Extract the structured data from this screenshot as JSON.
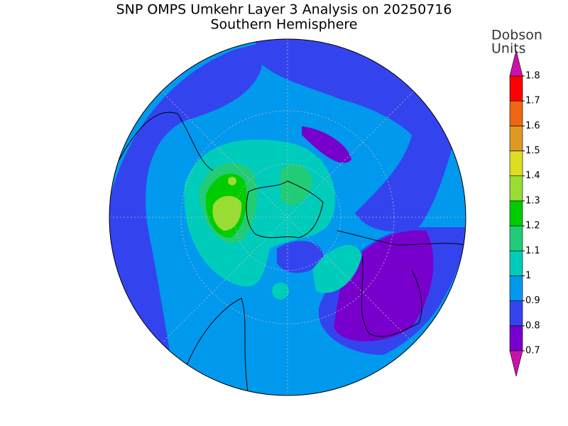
{
  "header": {
    "title": "SNP OMPS Umkehr Layer 3 Analysis on 20250716",
    "subtitle": "Southern Hemisphere"
  },
  "colorbar": {
    "label_lines": [
      "Dobson",
      "Units"
    ],
    "ticks": [
      0.7,
      0.8,
      0.9,
      1,
      1.1,
      1.2,
      1.3,
      1.4,
      1.5,
      1.6,
      1.7,
      1.8
    ],
    "colors": [
      "#7700cc",
      "#3344ee",
      "#0099ee",
      "#00ccbb",
      "#22cc77",
      "#00cc00",
      "#99dd33",
      "#dddd22",
      "#dd9922",
      "#ee6611",
      "#ff0000"
    ],
    "extend_colors": [
      "#cc11aa",
      "#cc11aa"
    ]
  }
}
